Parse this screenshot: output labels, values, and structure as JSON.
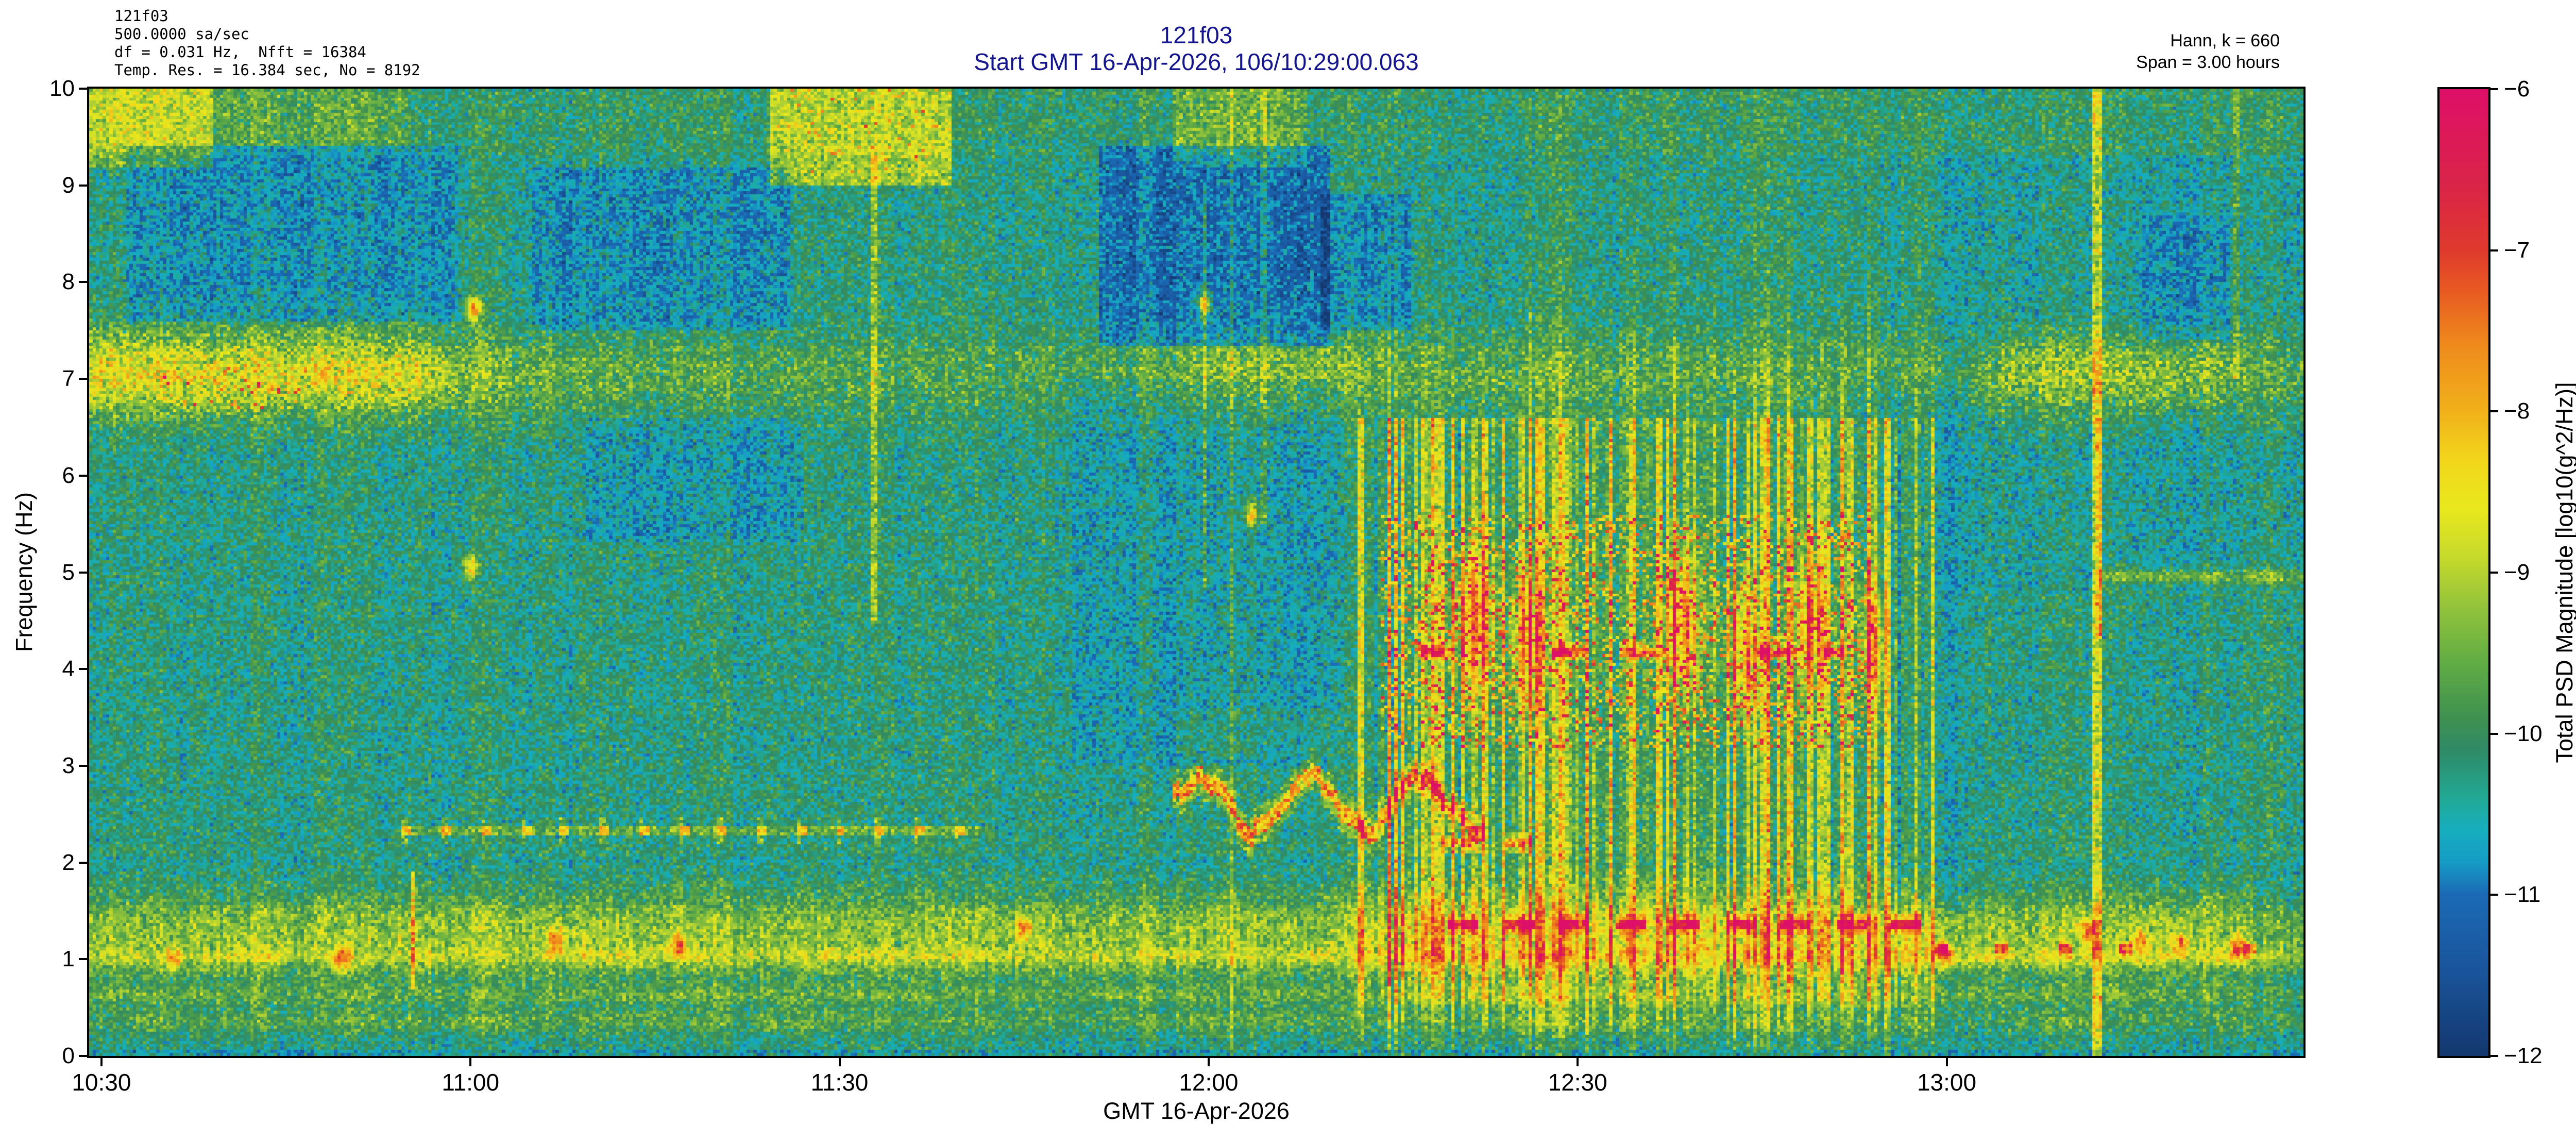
{
  "header": {
    "info_lines": [
      "121f03",
      "500.0000 sa/sec",
      "df = 0.031 Hz,  Nfft = 16384",
      "Temp. Res. = 16.384 sec, No = 8192"
    ],
    "title_line1": "121f03",
    "title_line2": "Start GMT 16-Apr-2026, 106/10:29:00.063",
    "title_color": "#16168c",
    "right_line1": "Hann, k = 660",
    "right_line2": "Span = 3.00 hours"
  },
  "chart_data": {
    "type": "heatmap",
    "title": "121f03",
    "subtitle": "Start GMT 16-Apr-2026, 106/10:29:00.063",
    "xlabel": "GMT 16-Apr-2026",
    "ylabel": "Frequency (Hz)",
    "x_ticks": [
      "10:30",
      "11:00",
      "11:30",
      "12:00",
      "12:30",
      "13:00"
    ],
    "x_tick_minutes": [
      1,
      31,
      61,
      91,
      121,
      151
    ],
    "x_range_minutes": [
      0,
      180
    ],
    "x_start": "10:29:00.063",
    "y_ticks": [
      0,
      1,
      2,
      3,
      4,
      5,
      6,
      7,
      8,
      9,
      10
    ],
    "ylim": [
      0,
      10
    ],
    "grid": {
      "cols": 660,
      "rows": 320
    },
    "background_level": -10.22,
    "noise_amp": 0.8,
    "colorbar": {
      "label": "Total PSD Magnitude [log10(g^2/Hz)]",
      "ticks": [
        -6,
        -7,
        -8,
        -9,
        -10,
        -11,
        -12
      ],
      "range": [
        -12,
        -6
      ],
      "stops": [
        [
          -12.0,
          "#14386f"
        ],
        [
          -11.4,
          "#1a58a0"
        ],
        [
          -11.0,
          "#1b6ab5"
        ],
        [
          -10.8,
          "#169bc5"
        ],
        [
          -10.6,
          "#16aebe"
        ],
        [
          -10.4,
          "#21a995"
        ],
        [
          -10.1,
          "#2f8a66"
        ],
        [
          -9.9,
          "#3f9150"
        ],
        [
          -9.55,
          "#62ad44"
        ],
        [
          -9.2,
          "#95c43a"
        ],
        [
          -8.9,
          "#c6da2b"
        ],
        [
          -8.6,
          "#e9e81d"
        ],
        [
          -8.3,
          "#f2d61b"
        ],
        [
          -8.0,
          "#f1b11a"
        ],
        [
          -7.6,
          "#ef8c1c"
        ],
        [
          -7.25,
          "#e85a22"
        ],
        [
          -7.0,
          "#df3a2d"
        ],
        [
          -6.6,
          "#da2448"
        ],
        [
          -6.0,
          "#de0f68"
        ]
      ]
    },
    "features": [
      {
        "kind": "hband",
        "f": 7.05,
        "sigma": 0.3,
        "amps": [
          [
            0,
            1.7
          ],
          [
            26,
            1.6
          ],
          [
            31,
            0.9
          ],
          [
            40,
            0.6
          ],
          [
            55,
            0.48
          ],
          [
            80,
            0.45
          ],
          [
            92,
            0.9
          ],
          [
            100,
            0.95
          ],
          [
            105,
            0.68
          ],
          [
            122,
            0.55
          ],
          [
            140,
            0.45
          ],
          [
            152,
            0.5
          ],
          [
            157,
            1.2
          ],
          [
            172,
            1.1
          ],
          [
            176,
            0.7
          ],
          [
            180,
            0.6
          ]
        ]
      },
      {
        "kind": "hband",
        "f": 1.27,
        "sigma": 0.34,
        "amps": [
          [
            0,
            0.95
          ],
          [
            30,
            1.05
          ],
          [
            60,
            0.95
          ],
          [
            100,
            1.0
          ],
          [
            104,
            1.25
          ],
          [
            148,
            1.25
          ],
          [
            152,
            1.0
          ],
          [
            162,
            1.1
          ],
          [
            172,
            1.1
          ],
          [
            176,
            0.9
          ],
          [
            180,
            0.85
          ]
        ]
      },
      {
        "kind": "hline",
        "f": 1.02,
        "sigma": 0.07,
        "amp": 0.6,
        "t0": 0,
        "t1": 180,
        "jitter": 1
      },
      {
        "kind": "hline",
        "f": 0.62,
        "sigma": 0.08,
        "amp": 0.45,
        "t0": 0,
        "t1": 180,
        "jitter": 1
      },
      {
        "kind": "hline",
        "f": 0.35,
        "sigma": 0.08,
        "amp": 0.5,
        "t0": 0,
        "t1": 180,
        "jitter": 1
      },
      {
        "kind": "hline",
        "f": 4.95,
        "sigma": 0.06,
        "amp": 0.9,
        "t0": 163.5,
        "t1": 180,
        "jitter": 0
      },
      {
        "kind": "rect",
        "t0": 0,
        "t1": 180,
        "f0": 9.3,
        "f1": 10,
        "amp": 0.22,
        "speckle": 0.6
      },
      {
        "kind": "rect",
        "t0": 0,
        "t1": 180,
        "f0": 1.55,
        "f1": 2.05,
        "amp": -0.18,
        "speckle": 0.4
      },
      {
        "kind": "rect",
        "t0": 0,
        "t1": 180,
        "f0": 0,
        "f1": 0.07,
        "amp": -0.55,
        "speckle": 1
      },
      {
        "kind": "rect",
        "t0": 3,
        "t1": 30,
        "f0": 7.6,
        "f1": 9.4,
        "amp": -0.7,
        "speckle": 0.55
      },
      {
        "kind": "rect",
        "t0": 36,
        "t1": 57,
        "f0": 7.5,
        "f1": 9.2,
        "amp": -0.75,
        "speckle": 0.5
      },
      {
        "kind": "rect",
        "t0": 40,
        "t1": 58,
        "f0": 5.3,
        "f1": 6.6,
        "amp": -0.55,
        "speckle": 0.5
      },
      {
        "kind": "rect",
        "t0": 82,
        "t1": 101,
        "f0": 7.35,
        "f1": 9.4,
        "amp": -1.0,
        "speckle": 0.35
      },
      {
        "kind": "rect",
        "t0": 80,
        "t1": 102,
        "f0": 3.0,
        "f1": 7.0,
        "amp": -0.38,
        "speckle": 0.5
      },
      {
        "kind": "rect",
        "t0": 100,
        "t1": 107.5,
        "f0": 7.5,
        "f1": 8.9,
        "amp": -0.75,
        "speckle": 0.4
      },
      {
        "kind": "rect",
        "t0": 167,
        "t1": 174,
        "f0": 7.4,
        "f1": 8.7,
        "amp": -0.5,
        "speckle": 0.5
      },
      {
        "kind": "rect",
        "t0": 150,
        "t1": 180,
        "f0": 4.8,
        "f1": 9.3,
        "amp": -0.22,
        "speckle": 0.7
      },
      {
        "kind": "rect",
        "t0": 176,
        "t1": 180,
        "f0": 0,
        "f1": 2,
        "amp": -0.3,
        "speckle": 0.6
      },
      {
        "kind": "rect",
        "t0": 143,
        "t1": 152,
        "f0": 1.5,
        "f1": 7,
        "amp": -0.3,
        "speckle": 0.8
      },
      {
        "kind": "rect",
        "t0": 55.5,
        "t1": 70,
        "f0": 9.0,
        "f1": 10,
        "amp": 1.3,
        "speckle": 0.35
      },
      {
        "kind": "speckle",
        "t0": 56,
        "t1": 69,
        "f0": 9.1,
        "f1": 10,
        "p": 0.05,
        "a0": 0.8,
        "a1": 1.6
      },
      {
        "kind": "rect",
        "t0": 0,
        "t1": 10,
        "f0": 9.2,
        "f1": 10,
        "amp": 0.95,
        "speckle": 0.3
      },
      {
        "kind": "rect",
        "t0": 0,
        "t1": 26,
        "f0": 9.4,
        "f1": 10,
        "amp": 0.5,
        "speckle": 0.4
      },
      {
        "kind": "rect",
        "t0": 88,
        "t1": 99,
        "f0": 9.2,
        "f1": 10,
        "amp": 0.7,
        "speckle": 0.4
      },
      {
        "kind": "rect",
        "t0": 88,
        "t1": 102,
        "f0": 3.1,
        "f1": 3.6,
        "amp": 0.35,
        "speckle": 0.5
      },
      {
        "kind": "rect",
        "t0": 103,
        "t1": 150,
        "f0": 0.5,
        "f1": 6.6,
        "amp": 0.3,
        "speckle": 0.3
      },
      {
        "kind": "stripes",
        "t0": 103,
        "t1": 150,
        "f0": 0.8,
        "f1": 6.6,
        "thresh": 0.42,
        "scale": 2.2
      },
      {
        "kind": "speckle",
        "t0": 105,
        "t1": 145,
        "f0": 3.2,
        "f1": 5.6,
        "p": 0.16,
        "a0": 1.2,
        "a1": 2.6
      },
      {
        "kind": "speckle",
        "t0": 6,
        "t1": 18,
        "f0": 6.7,
        "f1": 7.2,
        "p": 0.06,
        "a0": 1.0,
        "a1": 1.8
      },
      {
        "kind": "dashrow",
        "f": 4.18,
        "t0": 108,
        "t1": 143,
        "period": 5.5,
        "duty": 0.5,
        "amp": 2.25
      },
      {
        "kind": "dashrow",
        "f": 2.2,
        "t0": 110,
        "t1": 123,
        "period": 5,
        "duty": 0.45,
        "amp": 2.0
      },
      {
        "kind": "dashrow",
        "f": 1.36,
        "t0": 106,
        "t1": 150,
        "period": 4.5,
        "duty": 0.55,
        "amp": 2.3
      },
      {
        "kind": "dashrow",
        "f": 1.1,
        "t0": 150,
        "t1": 180,
        "period": 5,
        "duty": 0.22,
        "amp": 1.9
      },
      {
        "kind": "wavy",
        "t0": 88,
        "t1": 113.5,
        "fbase": 2.6,
        "famp": 0.28,
        "period": 9,
        "amp": 2.3
      },
      {
        "kind": "dotline",
        "f": 2.33,
        "t0": 25.5,
        "t1": 73,
        "period": 3.2,
        "base": 0.65,
        "amp": 1.45
      },
      {
        "kind": "vline",
        "t": 26.3,
        "w": 0.5,
        "f0": 0.7,
        "f1": 1.9,
        "amp": 1.7
      },
      {
        "kind": "vline",
        "t": 63.8,
        "w": 0.45,
        "f0": 4.5,
        "f1": 9.3,
        "amp": 0.85
      },
      {
        "kind": "vline",
        "t": 90.7,
        "w": 0.45,
        "f0": 4.8,
        "f1": 9.0,
        "amp": 0.95
      },
      {
        "kind": "vline",
        "t": 92.9,
        "w": 0.4,
        "f0": 0,
        "f1": 10,
        "amp": 0.6
      },
      {
        "kind": "vline",
        "t": 95.5,
        "w": 0.4,
        "f0": 5.5,
        "f1": 10,
        "amp": 0.55
      },
      {
        "kind": "vline",
        "t": 163.3,
        "w": 0.8,
        "f0": 0,
        "f1": 10,
        "amp": 1.35
      },
      {
        "kind": "vline",
        "t": 163.3,
        "w": 0.55,
        "f0": 4.3,
        "f1": 6.6,
        "amp": 0.85
      },
      {
        "kind": "vline",
        "t": 174.5,
        "w": 0.5,
        "f0": 7,
        "f1": 10,
        "amp": 0.6
      },
      {
        "kind": "dot",
        "t": 112.5,
        "f": 4.5,
        "amp": 2.0,
        "rt": 1.1,
        "rf": 0.55
      },
      {
        "kind": "dot",
        "t": 117,
        "f": 4.3,
        "amp": 1.8,
        "rt": 0.9,
        "rf": 0.5
      },
      {
        "kind": "dot",
        "t": 129.5,
        "f": 4.45,
        "amp": 1.9,
        "rt": 1.0,
        "rf": 0.5
      },
      {
        "kind": "dot",
        "t": 134.5,
        "f": 4.15,
        "amp": 1.8,
        "rt": 0.9,
        "rf": 0.5
      },
      {
        "kind": "dot",
        "t": 140,
        "f": 4.45,
        "amp": 1.9,
        "rt": 1.0,
        "rf": 0.5
      },
      {
        "kind": "dot",
        "t": 145,
        "f": 4.25,
        "amp": 1.7,
        "rt": 0.8,
        "rf": 0.45
      },
      {
        "kind": "dot",
        "t": 31.3,
        "f": 7.72,
        "amp": 2.4
      },
      {
        "kind": "dot",
        "t": 31.0,
        "f": 5.05,
        "amp": 2.0
      },
      {
        "kind": "dot",
        "t": 90.6,
        "f": 7.78,
        "amp": 2.6
      },
      {
        "kind": "dot",
        "t": 94.5,
        "f": 5.6,
        "amp": 2.2
      },
      {
        "kind": "dot",
        "t": 20.5,
        "f": 1.0,
        "amp": 1.6
      },
      {
        "kind": "dot",
        "t": 38,
        "f": 1.2,
        "amp": 1.9
      },
      {
        "kind": "dot",
        "t": 48,
        "f": 1.15,
        "amp": 2.1
      },
      {
        "kind": "dot",
        "t": 76,
        "f": 1.32,
        "amp": 1.9
      },
      {
        "kind": "dot",
        "t": 7,
        "f": 1.0,
        "amp": 1.5
      },
      {
        "kind": "dot",
        "t": 151,
        "f": 1.05,
        "amp": 1.8
      },
      {
        "kind": "dot",
        "t": 162.5,
        "f": 1.3,
        "amp": 1.8
      },
      {
        "kind": "dot",
        "t": 166.8,
        "f": 1.2,
        "amp": 1.7
      },
      {
        "kind": "dot",
        "t": 170,
        "f": 1.15,
        "amp": 1.9
      },
      {
        "kind": "dot",
        "t": 174.6,
        "f": 1.12,
        "amp": 2.2
      }
    ]
  }
}
